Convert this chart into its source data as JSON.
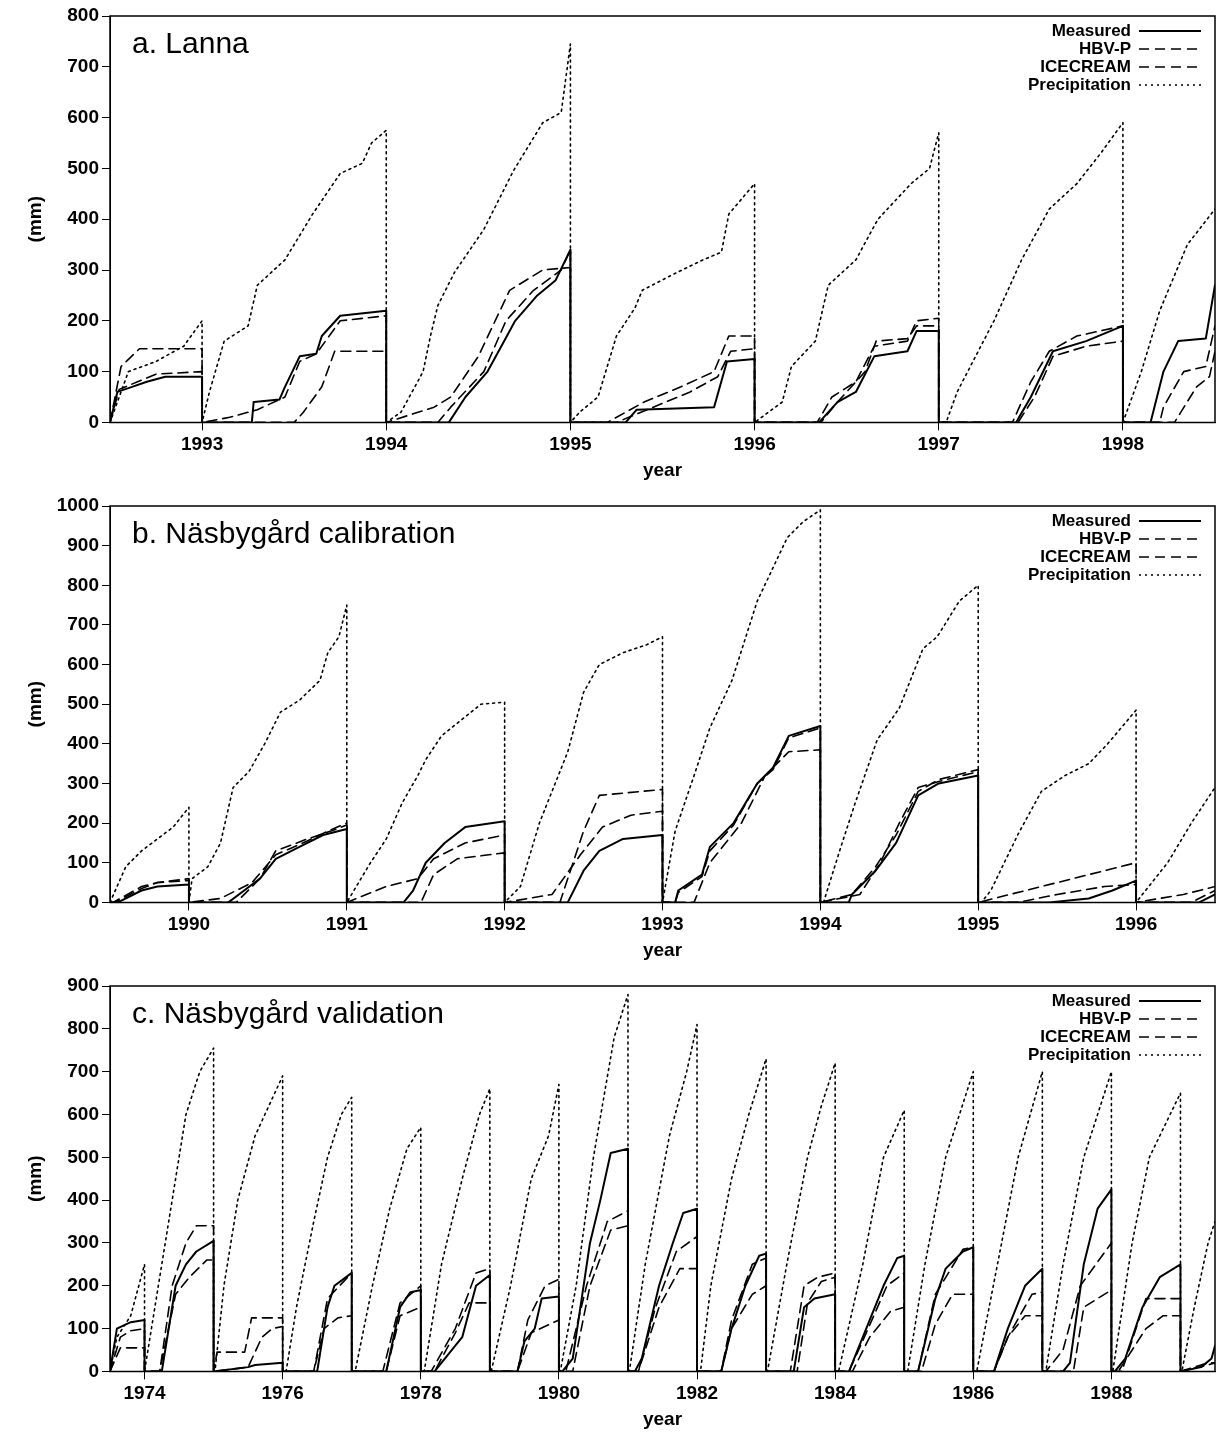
{
  "chart_data": [
    {
      "type": "line",
      "title": "a. Lanna",
      "xlabel": "year",
      "ylabel": "(mm)",
      "xlim": [
        1992.5,
        1998.5
      ],
      "xticks": [
        1993,
        1994,
        1995,
        1996,
        1997,
        1998
      ],
      "ylim": [
        0,
        800
      ],
      "yticks": [
        0,
        100,
        200,
        300,
        400,
        500,
        600,
        700,
        800
      ],
      "legend": "top right",
      "series": [
        {
          "name": "Measured",
          "color": "#000000",
          "line_style": "solid",
          "x": [
            1992.5,
            1992.54,
            1992.62,
            1992.7,
            1992.8,
            1993,
            1993,
            1993.27,
            1993.28,
            1993.42,
            1993.45,
            1993.53,
            1993.62,
            1993.65,
            1993.75,
            1994,
            1994,
            1994.34,
            1994.43,
            1994.55,
            1994.7,
            1994.82,
            1994.92,
            1995,
            1995,
            1995.3,
            1995.36,
            1995.78,
            1995.85,
            1996,
            1996,
            1996.35,
            1996.45,
            1996.55,
            1996.65,
            1996.83,
            1996.88,
            1997,
            1997,
            1997.42,
            1997.5,
            1997.62,
            1997.8,
            1998,
            1998,
            1998.15,
            1998.22,
            1998.3,
            1998.45,
            1998.5
          ],
          "values": [
            0,
            60,
            70,
            80,
            90,
            90,
            0,
            0,
            40,
            45,
            70,
            130,
            135,
            170,
            210,
            220,
            0,
            0,
            50,
            100,
            200,
            250,
            280,
            340,
            0,
            0,
            25,
            30,
            120,
            125,
            0,
            0,
            40,
            60,
            130,
            140,
            180,
            180,
            0,
            0,
            50,
            140,
            160,
            190,
            0,
            0,
            100,
            160,
            165,
            270
          ]
        },
        {
          "name": "HBV-P",
          "color": "#000000",
          "line_style": "dashed",
          "x": [
            1992.5,
            1992.55,
            1992.65,
            1992.75,
            1993,
            1993,
            1993.15,
            1993.3,
            1993.45,
            1993.53,
            1993.62,
            1993.75,
            1994,
            1994,
            1994.28,
            1994.35,
            1994.53,
            1994.65,
            1994.8,
            1994.95,
            1995,
            1995,
            1995.25,
            1995.45,
            1995.65,
            1995.8,
            1995.87,
            1996,
            1996,
            1996.34,
            1996.42,
            1996.55,
            1996.65,
            1996.83,
            1996.88,
            1997,
            1997,
            1997.4,
            1997.5,
            1997.6,
            1997.75,
            1998,
            1998,
            1998.2,
            1998.22,
            1998.33,
            1998.45,
            1998.5
          ],
          "values": [
            0,
            65,
            80,
            95,
            100,
            0,
            10,
            25,
            50,
            120,
            135,
            200,
            210,
            0,
            0,
            30,
            100,
            200,
            260,
            300,
            340,
            0,
            0,
            30,
            60,
            90,
            140,
            145,
            0,
            0,
            50,
            80,
            150,
            160,
            200,
            205,
            0,
            0,
            80,
            140,
            170,
            190,
            0,
            0,
            30,
            100,
            110,
            190
          ]
        },
        {
          "name": "ICECREAM",
          "color": "#000000",
          "line_style": "dashed",
          "x": [
            1992.5,
            1992.56,
            1992.66,
            1993,
            1993,
            1993.5,
            1993.55,
            1993.65,
            1993.72,
            1994,
            1994,
            1994.26,
            1994.35,
            1994.5,
            1994.67,
            1994.85,
            1995,
            1995,
            1995.2,
            1995.4,
            1995.6,
            1995.78,
            1995.86,
            1996,
            1996,
            1996.36,
            1996.45,
            1996.6,
            1996.66,
            1996.83,
            1996.88,
            1997,
            1997,
            1997.43,
            1997.52,
            1997.62,
            1997.8,
            1998,
            1998,
            1998.28,
            1998.4,
            1998.47,
            1998.5
          ],
          "values": [
            0,
            110,
            145,
            145,
            0,
            0,
            20,
            70,
            140,
            140,
            0,
            30,
            50,
            130,
            260,
            300,
            305,
            0,
            0,
            40,
            70,
            100,
            170,
            170,
            0,
            0,
            40,
            100,
            160,
            165,
            190,
            190,
            0,
            0,
            50,
            130,
            150,
            160,
            0,
            0,
            70,
            90,
            140
          ]
        },
        {
          "name": "Precipitation",
          "color": "#000000",
          "line_style": "dotted",
          "x": [
            1992.5,
            1992.6,
            1992.75,
            1992.9,
            1993,
            1993,
            1993.04,
            1993.12,
            1993.25,
            1993.3,
            1993.45,
            1993.6,
            1993.75,
            1993.87,
            1993.92,
            1994,
            1994,
            1994.08,
            1994.2,
            1994.24,
            1994.28,
            1994.37,
            1994.53,
            1994.69,
            1994.85,
            1994.95,
            1995,
            1995,
            1995.05,
            1995.15,
            1995.25,
            1995.35,
            1995.39,
            1995.55,
            1995.72,
            1995.82,
            1995.86,
            1996,
            1996,
            1996.15,
            1996.2,
            1996.33,
            1996.4,
            1996.55,
            1996.67,
            1996.85,
            1996.95,
            1997,
            1997,
            1997.04,
            1997.1,
            1997.3,
            1997.45,
            1997.6,
            1997.75,
            1997.88,
            1998,
            1998,
            1998.1,
            1998.2,
            1998.35,
            1998.5
          ],
          "values": [
            0,
            100,
            120,
            150,
            200,
            0,
            60,
            160,
            190,
            270,
            320,
            410,
            490,
            510,
            550,
            575,
            0,
            20,
            100,
            170,
            230,
            295,
            380,
            495,
            590,
            610,
            745,
            0,
            20,
            50,
            170,
            225,
            260,
            290,
            320,
            335,
            410,
            470,
            0,
            40,
            110,
            160,
            270,
            320,
            400,
            470,
            500,
            570,
            0,
            0,
            60,
            200,
            320,
            420,
            470,
            530,
            590,
            0,
            100,
            220,
            350,
            420
          ]
        }
      ]
    },
    {
      "type": "line",
      "title": "b. Näsbygård calibration",
      "xlabel": "year",
      "ylabel": "(mm)",
      "xlim": [
        1989.5,
        1996.5
      ],
      "xticks": [
        1990,
        1991,
        1992,
        1993,
        1994,
        1995,
        1996
      ],
      "ylim": [
        0,
        1000
      ],
      "yticks": [
        0,
        100,
        200,
        300,
        400,
        500,
        600,
        700,
        800,
        900,
        1000
      ],
      "legend": "top right",
      "series": [
        {
          "name": "Measured",
          "color": "#000000",
          "line_style": "solid",
          "x": [
            1989.5,
            1989.55,
            1989.7,
            1989.8,
            1990,
            1990,
            1990.25,
            1990.35,
            1990.45,
            1990.55,
            1990.7,
            1990.85,
            1991,
            1991,
            1991.36,
            1991.42,
            1991.5,
            1991.62,
            1991.75,
            1992,
            1992,
            1992.4,
            1992.5,
            1992.6,
            1992.75,
            1993,
            1993,
            1993.08,
            1993.1,
            1993.25,
            1993.3,
            1993.45,
            1993.6,
            1993.7,
            1993.8,
            1994,
            1994,
            1994.18,
            1994.2,
            1994.35,
            1994.48,
            1994.62,
            1994.75,
            1995,
            1995,
            1995.45,
            1995.7,
            1995.85,
            1996,
            1996,
            1996.4,
            1996.5
          ],
          "values": [
            0,
            0,
            30,
            40,
            45,
            0,
            0,
            30,
            60,
            110,
            140,
            170,
            185,
            0,
            0,
            30,
            100,
            150,
            190,
            205,
            0,
            0,
            80,
            130,
            160,
            170,
            0,
            0,
            30,
            70,
            140,
            200,
            300,
            340,
            420,
            445,
            0,
            0,
            20,
            80,
            150,
            270,
            300,
            320,
            0,
            0,
            10,
            30,
            55,
            0,
            0,
            20
          ]
        },
        {
          "name": "HBV-P",
          "color": "#000000",
          "line_style": "dashed",
          "x": [
            1989.5,
            1989.52,
            1989.7,
            1989.8,
            1990,
            1990,
            1990.2,
            1990.4,
            1990.55,
            1990.75,
            1990.88,
            1991,
            1991,
            1991.25,
            1991.45,
            1991.55,
            1991.75,
            1992,
            1992,
            1992.3,
            1992.48,
            1992.62,
            1992.8,
            1993,
            1993,
            1993.08,
            1993.1,
            1993.25,
            1993.3,
            1993.45,
            1993.6,
            1993.7,
            1993.8,
            1994,
            1994,
            1994.2,
            1994.35,
            1994.48,
            1994.62,
            1994.75,
            1995,
            1995,
            1995.2,
            1995.5,
            1995.8,
            1996,
            1996,
            1996.3,
            1996.5
          ],
          "values": [
            0,
            0,
            40,
            50,
            60,
            0,
            10,
            50,
            120,
            155,
            180,
            200,
            0,
            40,
            60,
            110,
            150,
            170,
            0,
            20,
            120,
            190,
            220,
            230,
            0,
            0,
            25,
            65,
            130,
            195,
            300,
            335,
            415,
            440,
            0,
            20,
            90,
            170,
            280,
            310,
            335,
            0,
            20,
            50,
            80,
            100,
            0,
            20,
            40
          ]
        },
        {
          "name": "ICECREAM",
          "color": "#000000",
          "line_style": "dashed",
          "x": [
            1989.5,
            1989.53,
            1989.7,
            1989.8,
            1990,
            1990,
            1990.3,
            1990.45,
            1990.55,
            1990.75,
            1990.9,
            1991,
            1991,
            1991.47,
            1991.55,
            1991.7,
            1992,
            1992,
            1992.35,
            1992.5,
            1992.6,
            1993,
            1993,
            1993.2,
            1993.3,
            1993.5,
            1993.65,
            1993.8,
            1994,
            1994,
            1994.25,
            1994.38,
            1994.5,
            1994.62,
            1994.75,
            1995,
            1995,
            1995.25,
            1995.5,
            1995.8,
            1996,
            1996,
            1996.35,
            1996.5
          ],
          "values": [
            0,
            0,
            35,
            50,
            55,
            0,
            0,
            60,
            130,
            160,
            180,
            195,
            0,
            0,
            70,
            110,
            125,
            0,
            0,
            180,
            270,
            285,
            0,
            0,
            100,
            200,
            320,
            380,
            385,
            0,
            20,
            100,
            200,
            290,
            305,
            330,
            0,
            0,
            20,
            40,
            45,
            0,
            0,
            30
          ]
        },
        {
          "name": "Precipitation",
          "color": "#000000",
          "line_style": "dotted",
          "x": [
            1989.5,
            1989.6,
            1989.7,
            1989.8,
            1989.9,
            1990,
            1990,
            1990.02,
            1990.12,
            1990.2,
            1990.28,
            1990.38,
            1990.48,
            1990.58,
            1990.7,
            1990.83,
            1990.88,
            1990.95,
            1991,
            1991,
            1991.15,
            1991.25,
            1991.35,
            1991.45,
            1991.5,
            1991.6,
            1991.85,
            1992,
            1992,
            1992.1,
            1992.22,
            1992.27,
            1992.4,
            1992.5,
            1992.6,
            1992.75,
            1992.9,
            1993,
            1993,
            1993.08,
            1993.2,
            1993.3,
            1993.44,
            1993.6,
            1993.79,
            1993.89,
            1994,
            1994,
            1994.02,
            1994.13,
            1994.22,
            1994.36,
            1994.5,
            1994.65,
            1994.74,
            1994.88,
            1995,
            1995,
            1995.02,
            1995.08,
            1995.25,
            1995.4,
            1995.55,
            1995.7,
            1995.82,
            1996,
            1996,
            1996.2,
            1996.35,
            1996.5
          ],
          "values": [
            0,
            90,
            130,
            160,
            190,
            240,
            0,
            60,
            90,
            150,
            290,
            330,
            400,
            480,
            510,
            560,
            630,
            670,
            750,
            0,
            100,
            160,
            250,
            320,
            360,
            420,
            500,
            505,
            0,
            40,
            200,
            250,
            380,
            530,
            600,
            630,
            650,
            670,
            0,
            180,
            320,
            440,
            560,
            760,
            920,
            960,
            990,
            0,
            0,
            140,
            250,
            410,
            490,
            640,
            670,
            760,
            800,
            0,
            0,
            30,
            170,
            280,
            320,
            350,
            400,
            485,
            0,
            100,
            200,
            290
          ]
        }
      ]
    },
    {
      "type": "line",
      "title": "c. Näsbygård validation",
      "xlabel": "year",
      "ylabel": "(mm)",
      "xlim": [
        1973.5,
        1989.5
      ],
      "xticks": [
        1974,
        1976,
        1978,
        1980,
        1982,
        1984,
        1986,
        1988
      ],
      "ylim": [
        0,
        900
      ],
      "yticks": [
        0,
        100,
        200,
        300,
        400,
        500,
        600,
        700,
        800,
        900
      ],
      "legend": "top right",
      "series": [
        {
          "name": "Measured",
          "color": "#000000",
          "line_style": "solid",
          "x": [
            1973.5,
            1973.6,
            1973.8,
            1974,
            1974,
            1974.25,
            1974.45,
            1974.6,
            1974.75,
            1975,
            1975,
            1975.5,
            1975.6,
            1976,
            1976,
            1976.5,
            1976.65,
            1976.75,
            1977,
            1977,
            1977.5,
            1977.7,
            1977.85,
            1978,
            1978,
            1978.2,
            1978.5,
            1978.6,
            1978.8,
            1979,
            1979,
            1979.4,
            1979.5,
            1979.65,
            1979.75,
            1980,
            1980,
            1980.05,
            1980.2,
            1980.45,
            1980.6,
            1980.75,
            1981,
            1981,
            1981.1,
            1981.2,
            1981.45,
            1981.65,
            1981.8,
            1982,
            1982,
            1982.35,
            1982.5,
            1982.7,
            1982.9,
            1983,
            1983,
            1983.4,
            1983.55,
            1983.7,
            1984,
            1984,
            1984.2,
            1984.45,
            1984.7,
            1984.9,
            1985,
            1985,
            1985.2,
            1985.45,
            1985.6,
            1985.85,
            1986,
            1986,
            1986.3,
            1986.5,
            1986.75,
            1987,
            1987,
            1987.3,
            1987.4,
            1987.6,
            1987.8,
            1988,
            1988,
            1988.05,
            1988.2,
            1988.45,
            1988.7,
            1989,
            1989,
            1989.3,
            1989.45,
            1989.5
          ],
          "values": [
            0,
            100,
            115,
            120,
            0,
            0,
            200,
            250,
            280,
            305,
            0,
            10,
            15,
            20,
            0,
            0,
            150,
            200,
            230,
            0,
            0,
            150,
            185,
            190,
            0,
            0,
            60,
            80,
            200,
            225,
            0,
            0,
            70,
            100,
            170,
            175,
            0,
            0,
            30,
            300,
            400,
            510,
            520,
            0,
            0,
            30,
            200,
            300,
            370,
            380,
            0,
            0,
            100,
            200,
            270,
            275,
            0,
            0,
            150,
            170,
            180,
            0,
            0,
            100,
            200,
            265,
            270,
            0,
            0,
            170,
            240,
            280,
            290,
            0,
            0,
            100,
            200,
            240,
            0,
            0,
            20,
            250,
            380,
            425,
            0,
            0,
            30,
            150,
            220,
            250,
            0,
            10,
            30,
            60
          ]
        },
        {
          "name": "HBV-P",
          "color": "#000000",
          "line_style": "dashed",
          "x": [
            1973.5,
            1973.65,
            1973.8,
            1974,
            1974,
            1974.22,
            1974.45,
            1974.65,
            1974.9,
            1975,
            1975,
            1975.5,
            1975.7,
            1975.85,
            1976,
            1976,
            1976.45,
            1976.65,
            1977,
            1977,
            1977.45,
            1977.7,
            1978,
            1978,
            1978.15,
            1978.5,
            1978.8,
            1979,
            1979,
            1979.4,
            1979.55,
            1979.8,
            1980,
            1980,
            1980.1,
            1980.4,
            1980.7,
            1981,
            1981,
            1981.15,
            1981.4,
            1981.7,
            1982,
            1982,
            1982.35,
            1982.5,
            1982.8,
            1983,
            1983,
            1983.35,
            1983.55,
            1983.75,
            1984,
            1984,
            1984.2,
            1984.45,
            1984.75,
            1985,
            1985,
            1985.2,
            1985.45,
            1985.85,
            1986,
            1986,
            1986.3,
            1986.5,
            1986.85,
            1987,
            1987,
            1987.05,
            1987.3,
            1987.55,
            1988,
            1988,
            1988.1,
            1988.5,
            1988.75,
            1989,
            1989,
            1989.4,
            1989.5
          ],
          "values": [
            0,
            80,
            95,
            100,
            0,
            0,
            180,
            220,
            260,
            260,
            0,
            10,
            80,
            100,
            105,
            0,
            0,
            170,
            230,
            0,
            0,
            160,
            200,
            0,
            0,
            100,
            230,
            240,
            0,
            0,
            120,
            200,
            215,
            0,
            0,
            200,
            350,
            375,
            0,
            0,
            150,
            280,
            315,
            0,
            0,
            100,
            180,
            200,
            0,
            0,
            200,
            220,
            230,
            0,
            0,
            90,
            200,
            230,
            0,
            0,
            180,
            285,
            290,
            0,
            0,
            80,
            180,
            185,
            0,
            0,
            50,
            200,
            300,
            0,
            0,
            100,
            130,
            130,
            0,
            20,
            20
          ]
        },
        {
          "name": "ICECREAM",
          "color": "#000000",
          "line_style": "dashed",
          "x": [
            1973.5,
            1973.65,
            1974,
            1974,
            1974.22,
            1974.4,
            1974.6,
            1974.75,
            1975,
            1975,
            1975.05,
            1975.45,
            1975.55,
            1976,
            1976,
            1976.45,
            1976.6,
            1976.8,
            1977,
            1977,
            1977.5,
            1977.7,
            1978,
            1978,
            1978.2,
            1978.5,
            1978.7,
            1979,
            1979,
            1979.4,
            1979.6,
            1980,
            1980,
            1980.2,
            1980.45,
            1980.75,
            1981,
            1981,
            1981.15,
            1981.45,
            1981.75,
            1982,
            1982,
            1982.35,
            1982.5,
            1982.8,
            1983,
            1983,
            1983.45,
            1983.6,
            1983.8,
            1984,
            1984,
            1984.25,
            1984.5,
            1984.8,
            1985,
            1985,
            1985.25,
            1985.45,
            1985.7,
            1986,
            1986,
            1986.3,
            1986.5,
            1986.75,
            1987,
            1987,
            1987.45,
            1987.6,
            1988,
            1988,
            1988.15,
            1988.5,
            1989,
            1989,
            1989.4,
            1989.5
          ],
          "values": [
            0,
            55,
            55,
            0,
            0,
            200,
            300,
            340,
            340,
            0,
            45,
            45,
            125,
            125,
            0,
            0,
            100,
            125,
            130,
            0,
            0,
            130,
            150,
            0,
            0,
            90,
            160,
            160,
            0,
            0,
            90,
            120,
            0,
            0,
            200,
            330,
            340,
            0,
            0,
            150,
            240,
            240,
            0,
            0,
            120,
            250,
            265,
            0,
            0,
            160,
            210,
            220,
            0,
            0,
            80,
            140,
            150,
            0,
            0,
            110,
            180,
            180,
            0,
            0,
            80,
            130,
            130,
            0,
            0,
            150,
            190,
            0,
            0,
            170,
            170,
            0,
            15,
            20
          ]
        },
        {
          "name": "Precipitation",
          "color": "#000000",
          "line_style": "dotted",
          "x": [
            1973.5,
            1973.6,
            1973.8,
            1974,
            1974,
            1974.1,
            1974.35,
            1974.6,
            1974.8,
            1975,
            1975,
            1975.02,
            1975.15,
            1975.35,
            1975.6,
            1975.8,
            1976,
            1976,
            1976.05,
            1976.2,
            1976.45,
            1976.65,
            1976.85,
            1977,
            1977,
            1977.05,
            1977.3,
            1977.55,
            1977.8,
            1978,
            1978,
            1978.05,
            1978.3,
            1978.6,
            1978.85,
            1979,
            1979,
            1979.02,
            1979.3,
            1979.6,
            1979.85,
            1980,
            1980,
            1980.02,
            1980.25,
            1980.5,
            1980.8,
            1981,
            1981,
            1981.02,
            1981.25,
            1981.6,
            1981.85,
            1982,
            1982,
            1982.05,
            1982.2,
            1982.5,
            1982.75,
            1983,
            1983,
            1983.02,
            1983.3,
            1983.6,
            1983.8,
            1984,
            1984,
            1984.05,
            1984.4,
            1984.7,
            1985,
            1985,
            1985.05,
            1985.3,
            1985.6,
            1986,
            1986,
            1986.05,
            1986.35,
            1986.65,
            1987,
            1987,
            1987.05,
            1987.3,
            1987.6,
            1988,
            1988,
            1988.02,
            1988.3,
            1988.55,
            1989,
            1989,
            1989.02,
            1989.2,
            1989.4,
            1989.5
          ],
          "values": [
            0,
            80,
            130,
            250,
            0,
            100,
            350,
            600,
            700,
            755,
            0,
            0,
            200,
            400,
            550,
            620,
            690,
            0,
            0,
            150,
            350,
            500,
            600,
            640,
            0,
            0,
            200,
            380,
            520,
            570,
            0,
            0,
            250,
            450,
            600,
            660,
            0,
            0,
            200,
            450,
            550,
            670,
            0,
            0,
            200,
            500,
            780,
            880,
            0,
            0,
            250,
            550,
            700,
            810,
            0,
            0,
            200,
            450,
            600,
            730,
            0,
            0,
            250,
            500,
            620,
            720,
            0,
            0,
            250,
            500,
            610,
            0,
            0,
            250,
            500,
            700,
            0,
            0,
            250,
            500,
            700,
            0,
            0,
            250,
            500,
            700,
            0,
            0,
            300,
            500,
            650,
            0,
            0,
            150,
            300,
            350
          ]
        }
      ]
    }
  ]
}
